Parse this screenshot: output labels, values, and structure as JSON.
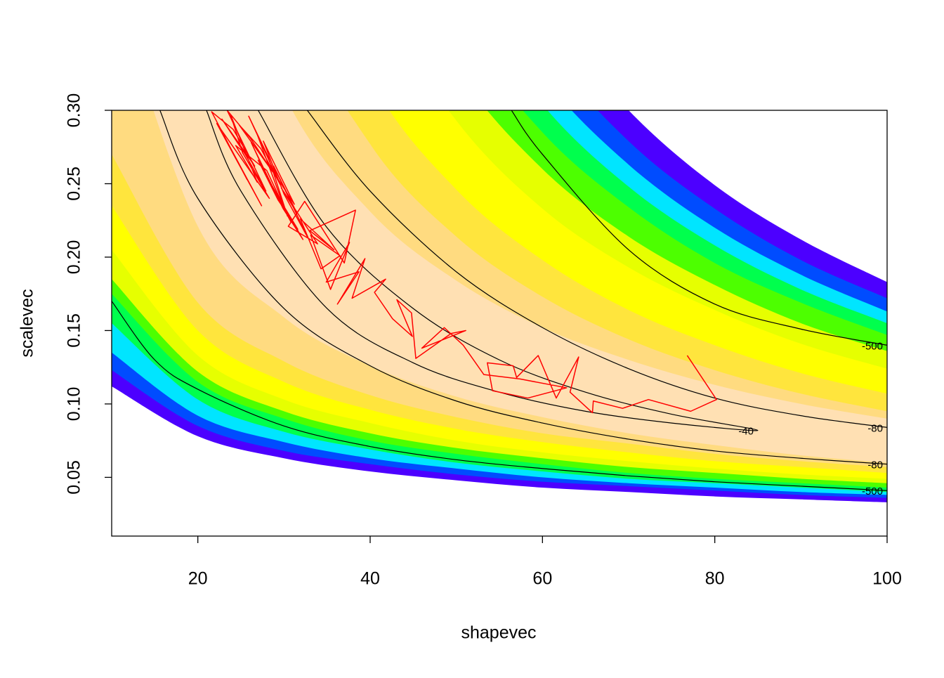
{
  "chart_data": {
    "type": "contour",
    "xlabel": "shapevec",
    "ylabel": "scalevec",
    "xlim": [
      10,
      100
    ],
    "ylim": [
      0.01,
      0.3
    ],
    "xticks": [
      20,
      40,
      60,
      80,
      100
    ],
    "yticks": [
      0.05,
      {
        "value": 0.1,
        "label": "0.10"
      },
      0.15,
      {
        "value": 0.2,
        "label": "0.20"
      },
      0.25,
      {
        "value": 0.3,
        "label": "0.30"
      }
    ],
    "band_x": [
      10,
      20,
      30,
      40,
      50,
      60,
      70,
      80,
      90,
      100
    ],
    "bands": [
      {
        "color": "#4c00ff",
        "upper": [
          4.4,
          1.69,
          0.964,
          0.648,
          0.476,
          0.37,
          0.3,
          0.249,
          0.212,
          0.183
        ],
        "lower": [
          0.112,
          0.078,
          0.063,
          0.054,
          0.048,
          0.043,
          0.04,
          0.037,
          0.035,
          0.033
        ]
      },
      {
        "color": "#004cff",
        "upper": [
          3.94,
          1.53,
          0.884,
          0.599,
          0.442,
          0.345,
          0.279,
          0.233,
          0.198,
          0.172
        ],
        "lower": [
          0.123,
          0.085,
          0.068,
          0.059,
          0.052,
          0.047,
          0.044,
          0.041,
          0.038,
          0.036
        ]
      },
      {
        "color": "#00e5ff",
        "upper": [
          3.57,
          1.41,
          0.818,
          0.556,
          0.412,
          0.323,
          0.263,
          0.22,
          0.188,
          0.163
        ],
        "lower": [
          0.135,
          0.092,
          0.074,
          0.063,
          0.056,
          0.05,
          0.046,
          0.043,
          0.04,
          0.038
        ]
      },
      {
        "color": "#00ff4d",
        "upper": [
          3.24,
          1.3,
          0.76,
          0.519,
          0.388,
          0.304,
          0.248,
          0.208,
          0.178,
          0.155
        ],
        "lower": [
          0.155,
          0.103,
          0.081,
          0.069,
          0.06,
          0.054,
          0.049,
          0.046,
          0.043,
          0.04
        ]
      },
      {
        "color": "#4dff00",
        "upper": [
          2.93,
          1.19,
          0.703,
          0.484,
          0.362,
          0.285,
          0.234,
          0.196,
          0.169,
          0.147
        ],
        "lower": [
          0.175,
          0.115,
          0.09,
          0.075,
          0.066,
          0.059,
          0.053,
          0.049,
          0.046,
          0.043
        ]
      },
      {
        "color": "#e6ff00",
        "upper": [
          2.53,
          1.05,
          0.627,
          0.435,
          0.328,
          0.26,
          0.214,
          0.181,
          0.155,
          0.136
        ],
        "lower": [
          0.185,
          0.122,
          0.095,
          0.08,
          0.07,
          0.063,
          0.057,
          0.053,
          0.049,
          0.046
        ]
      },
      {
        "color": "#ffff00",
        "upper": [
          2.16,
          0.913,
          0.552,
          0.386,
          0.293,
          0.233,
          0.193,
          0.164,
          0.141,
          0.124
        ],
        "lower": [
          0.205,
          0.133,
          0.103,
          0.087,
          0.075,
          0.067,
          0.061,
          0.056,
          0.052,
          0.049
        ]
      },
      {
        "color": "#ffe53d",
        "upper": [
          1.7,
          0.738,
          0.454,
          0.321,
          0.246,
          0.198,
          0.164,
          0.14,
          0.121,
          0.107
        ],
        "lower": [
          0.235,
          0.15,
          0.115,
          0.096,
          0.083,
          0.074,
          0.067,
          0.061,
          0.057,
          0.053
        ]
      },
      {
        "color": "#ffdb80",
        "upper": [
          1.41,
          0.624,
          0.389,
          0.277,
          0.214,
          0.173,
          0.144,
          0.123,
          0.107,
          0.095
        ],
        "lower": [
          0.27,
          0.169,
          0.129,
          0.106,
          0.091,
          0.08,
          0.073,
          0.066,
          0.061,
          0.057
        ]
      },
      {
        "color": "#ffe0b3",
        "upper": [
          0.964,
          0.473,
          0.311,
          0.231,
          0.184,
          0.152,
          0.13,
          0.113,
          0.1,
          0.09
        ],
        "lower": [
          0.388,
          0.221,
          0.159,
          0.126,
          0.105,
          0.091,
          0.08,
          0.072,
          0.065,
          0.06
        ]
      }
    ],
    "contours": [
      {
        "level": -40,
        "color": "#000000",
        "x": [
          27,
          35,
          45,
          55,
          65,
          75,
          85,
          75,
          65,
          55,
          45,
          35,
          25,
          21
        ],
        "y": [
          0.3,
          0.22,
          0.165,
          0.13,
          0.108,
          0.093,
          0.082,
          0.087,
          0.095,
          0.108,
          0.128,
          0.165,
          0.245,
          0.3
        ]
      },
      {
        "level": -80,
        "color": "#000000",
        "x": [
          32.7,
          40,
          50,
          60,
          70,
          80,
          90,
          100
        ],
        "y": [
          0.3,
          0.245,
          0.19,
          0.152,
          0.124,
          0.104,
          0.092,
          0.084
        ]
      },
      {
        "level": -80,
        "color": "#000000",
        "x": [
          15.6,
          20,
          30,
          40,
          50,
          60,
          70,
          80,
          90,
          100
        ],
        "y": [
          0.3,
          0.24,
          0.165,
          0.126,
          0.102,
          0.087,
          0.076,
          0.068,
          0.063,
          0.059
        ]
      },
      {
        "level": -500,
        "color": "#000000",
        "x": [
          56.4,
          60,
          70,
          80,
          90,
          100
        ],
        "y": [
          0.3,
          0.27,
          0.205,
          0.168,
          0.151,
          0.14
        ]
      },
      {
        "level": -500,
        "color": "#000000",
        "x": [
          10,
          15,
          20,
          30,
          40,
          50,
          60,
          70,
          80,
          90,
          100
        ],
        "y": [
          0.17,
          0.13,
          0.11,
          0.085,
          0.071,
          0.062,
          0.056,
          0.051,
          0.047,
          0.044,
          0.041
        ]
      }
    ],
    "series": [
      {
        "color": "#ff0000",
        "x": [
          76.8,
          80.2,
          77.2,
          72.3,
          69.3,
          65.9,
          65.8,
          63.2,
          64.2,
          61.6,
          59.5,
          57.0,
          56.6,
          53.6,
          54.2,
          58.3,
          62.8,
          57.4,
          53.2,
          50.8,
          48.6,
          46.0,
          51.1,
          49.4,
          45.3,
          44.8,
          43.1,
          44.9,
          42.6,
          40.5,
          41.8,
          37.9,
          39.4,
          36.2,
          38.7,
          34.9,
          37.6,
          35.4,
          33.1,
          36.5,
          34.3,
          31.9,
          35.8,
          33.0,
          38.3,
          37.0,
          32.4,
          30.5,
          33.9,
          29.7,
          31.5,
          28.8,
          32.7,
          30.0,
          27.6,
          31.2,
          29.1,
          26.8,
          30.4,
          28.2,
          25.9,
          29.6,
          27.3,
          24.8,
          28.7,
          26.1,
          23.4,
          27.9,
          25.5,
          22.8,
          26.6,
          24.1,
          21.6,
          25.7,
          23.0,
          27.4,
          24.6,
          22.2,
          28.3,
          25.2,
          23.8,
          26.9,
          24.4,
          28.0,
          30.8,
          27.0,
          29.3,
          31.6,
          28.5,
          26.2,
          29.9,
          32.2,
          27.8
        ],
        "y": [
          0.133,
          0.103,
          0.095,
          0.103,
          0.097,
          0.102,
          0.094,
          0.108,
          0.132,
          0.104,
          0.133,
          0.118,
          0.126,
          0.128,
          0.109,
          0.104,
          0.111,
          0.117,
          0.12,
          0.14,
          0.152,
          0.138,
          0.15,
          0.148,
          0.131,
          0.162,
          0.171,
          0.146,
          0.158,
          0.176,
          0.185,
          0.172,
          0.199,
          0.168,
          0.19,
          0.183,
          0.21,
          0.178,
          0.215,
          0.201,
          0.192,
          0.226,
          0.205,
          0.218,
          0.232,
          0.196,
          0.238,
          0.221,
          0.209,
          0.247,
          0.23,
          0.262,
          0.214,
          0.243,
          0.279,
          0.236,
          0.255,
          0.285,
          0.228,
          0.268,
          0.296,
          0.249,
          0.274,
          0.29,
          0.258,
          0.281,
          0.3,
          0.245,
          0.27,
          0.294,
          0.262,
          0.287,
          0.299,
          0.253,
          0.283,
          0.235,
          0.265,
          0.291,
          0.24,
          0.271,
          0.297,
          0.251,
          0.276,
          0.259,
          0.224,
          0.266,
          0.239,
          0.219,
          0.249,
          0.278,
          0.233,
          0.212,
          0.257
        ]
      }
    ]
  }
}
